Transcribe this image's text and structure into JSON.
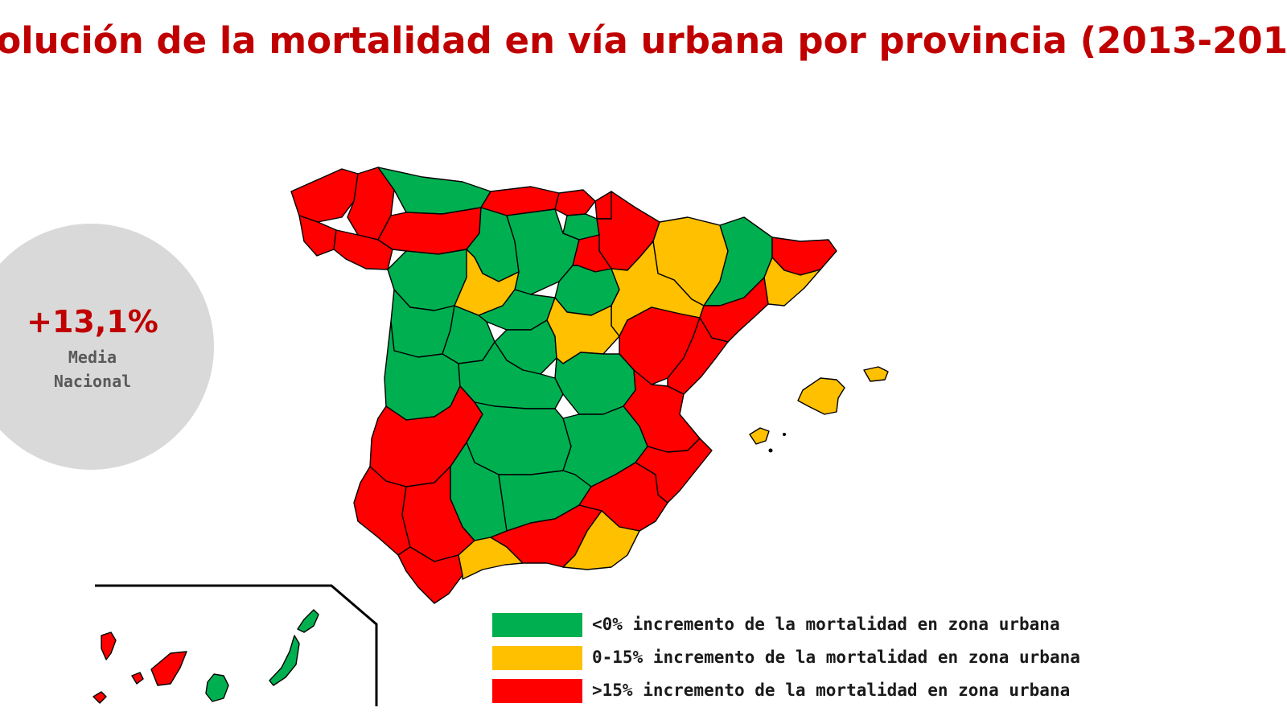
{
  "title": "volución de la mortalidad en vía urbana por provincia (2013-201",
  "national_average": {
    "value": "+13,1%",
    "label_line1": "Media",
    "label_line2": "Nacional"
  },
  "colors": {
    "negative": "#00b050",
    "moderate": "#ffc000",
    "high": "#ff0000",
    "title": "#c00000",
    "circle": "#d9d9d9"
  },
  "legend": [
    {
      "category": "negative",
      "color": "#00b050",
      "label": "<0% incremento de la mortalidad en zona urbana"
    },
    {
      "category": "moderate",
      "color": "#ffc000",
      "label": " 0-15% incremento de la mortalidad en zona urbana"
    },
    {
      "category": "high",
      "color": "#ff0000",
      "label": ">15% incremento de la mortalidad en zona urbana"
    }
  ],
  "provinces": [
    {
      "name": "galicia-north",
      "category": "high"
    },
    {
      "name": "galicia-east",
      "category": "high"
    },
    {
      "name": "galicia-south",
      "category": "high"
    },
    {
      "name": "galicia-southeast",
      "category": "high"
    },
    {
      "name": "asturias",
      "category": "negative"
    },
    {
      "name": "cantabria",
      "category": "high"
    },
    {
      "name": "bizkaia",
      "category": "high"
    },
    {
      "name": "gipuzkoa",
      "category": "high"
    },
    {
      "name": "alava",
      "category": "negative"
    },
    {
      "name": "navarra",
      "category": "high"
    },
    {
      "name": "leon",
      "category": "high"
    },
    {
      "name": "palencia",
      "category": "negative"
    },
    {
      "name": "burgos",
      "category": "negative"
    },
    {
      "name": "la-rioja",
      "category": "high"
    },
    {
      "name": "huesca",
      "category": "moderate"
    },
    {
      "name": "lleida",
      "category": "negative"
    },
    {
      "name": "girona",
      "category": "high"
    },
    {
      "name": "barcelona",
      "category": "moderate"
    },
    {
      "name": "zamora",
      "category": "negative"
    },
    {
      "name": "valladolid",
      "category": "moderate"
    },
    {
      "name": "soria",
      "category": "negative"
    },
    {
      "name": "zaragoza",
      "category": "moderate"
    },
    {
      "name": "tarragona",
      "category": "high"
    },
    {
      "name": "salamanca",
      "category": "negative"
    },
    {
      "name": "segovia",
      "category": "negative"
    },
    {
      "name": "avila",
      "category": "negative"
    },
    {
      "name": "madrid",
      "category": "negative"
    },
    {
      "name": "guadalajara",
      "category": "moderate"
    },
    {
      "name": "teruel",
      "category": "high"
    },
    {
      "name": "castellon",
      "category": "high"
    },
    {
      "name": "caceres",
      "category": "negative"
    },
    {
      "name": "toledo",
      "category": "negative"
    },
    {
      "name": "cuenca",
      "category": "negative"
    },
    {
      "name": "valencia",
      "category": "high"
    },
    {
      "name": "badajoz",
      "category": "high"
    },
    {
      "name": "ciudad-real",
      "category": "negative"
    },
    {
      "name": "albacete",
      "category": "negative"
    },
    {
      "name": "alicante",
      "category": "high"
    },
    {
      "name": "huelva",
      "category": "high"
    },
    {
      "name": "sevilla",
      "category": "high"
    },
    {
      "name": "cordoba",
      "category": "negative"
    },
    {
      "name": "jaen",
      "category": "negative"
    },
    {
      "name": "murcia",
      "category": "high"
    },
    {
      "name": "cadiz",
      "category": "high"
    },
    {
      "name": "malaga",
      "category": "moderate"
    },
    {
      "name": "granada",
      "category": "high"
    },
    {
      "name": "almeria",
      "category": "moderate"
    },
    {
      "name": "mallorca",
      "category": "moderate"
    },
    {
      "name": "menorca",
      "category": "moderate"
    },
    {
      "name": "ibiza",
      "category": "moderate"
    },
    {
      "name": "la-palma",
      "category": "high"
    },
    {
      "name": "el-hierro",
      "category": "high"
    },
    {
      "name": "la-gomera",
      "category": "high"
    },
    {
      "name": "tenerife",
      "category": "high"
    },
    {
      "name": "gran-canaria",
      "category": "negative"
    },
    {
      "name": "fuerteventura",
      "category": "negative"
    },
    {
      "name": "lanzarote",
      "category": "negative"
    }
  ]
}
